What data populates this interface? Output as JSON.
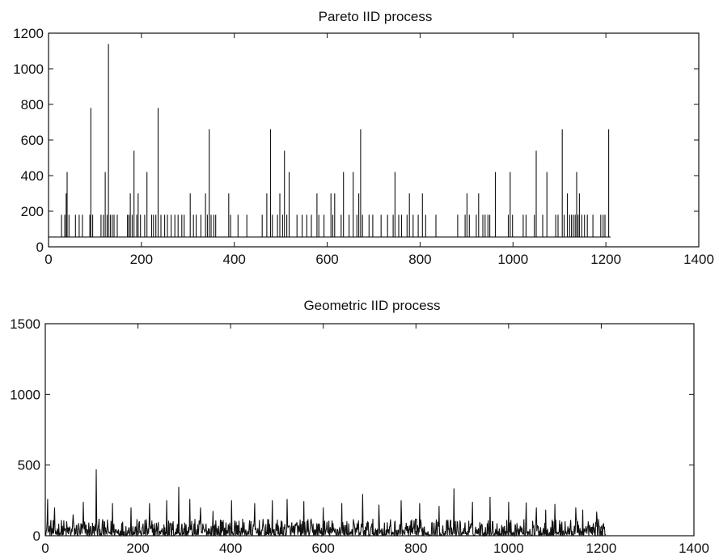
{
  "chart_data": [
    {
      "type": "line",
      "title": "Pareto IID process",
      "xlim": [
        0,
        1400
      ],
      "ylim": [
        0,
        1200
      ],
      "xticks": [
        0,
        200,
        400,
        600,
        800,
        1000,
        1200,
        1400
      ],
      "yticks": [
        0,
        200,
        400,
        600,
        800,
        1000,
        1200
      ],
      "xtick_labels": [
        "0",
        "200",
        "400",
        "600",
        "800",
        "1000",
        "1200",
        "1400"
      ],
      "ytick_labels": [
        "0",
        "200",
        "400",
        "600",
        "800",
        "1000",
        "1200"
      ],
      "n_points": 1210,
      "baseline": 55,
      "spikes": [
        [
          28,
          180
        ],
        [
          35,
          180
        ],
        [
          38,
          300
        ],
        [
          40,
          420
        ],
        [
          44,
          180
        ],
        [
          58,
          180
        ],
        [
          66,
          180
        ],
        [
          73,
          180
        ],
        [
          89,
          180
        ],
        [
          91,
          780
        ],
        [
          95,
          180
        ],
        [
          113,
          180
        ],
        [
          118,
          180
        ],
        [
          122,
          420
        ],
        [
          126,
          180
        ],
        [
          129,
          1140
        ],
        [
          133,
          180
        ],
        [
          137,
          180
        ],
        [
          141,
          180
        ],
        [
          148,
          180
        ],
        [
          170,
          180
        ],
        [
          173,
          180
        ],
        [
          176,
          300
        ],
        [
          180,
          180
        ],
        [
          184,
          540
        ],
        [
          190,
          180
        ],
        [
          193,
          300
        ],
        [
          198,
          180
        ],
        [
          207,
          180
        ],
        [
          212,
          420
        ],
        [
          222,
          180
        ],
        [
          226,
          180
        ],
        [
          231,
          180
        ],
        [
          236,
          780
        ],
        [
          242,
          180
        ],
        [
          250,
          180
        ],
        [
          256,
          180
        ],
        [
          264,
          180
        ],
        [
          272,
          180
        ],
        [
          279,
          180
        ],
        [
          287,
          180
        ],
        [
          292,
          180
        ],
        [
          305,
          300
        ],
        [
          312,
          180
        ],
        [
          318,
          180
        ],
        [
          328,
          180
        ],
        [
          338,
          300
        ],
        [
          342,
          180
        ],
        [
          346,
          660
        ],
        [
          350,
          180
        ],
        [
          356,
          180
        ],
        [
          360,
          180
        ],
        [
          388,
          300
        ],
        [
          392,
          180
        ],
        [
          408,
          180
        ],
        [
          427,
          180
        ],
        [
          460,
          180
        ],
        [
          470,
          300
        ],
        [
          478,
          660
        ],
        [
          482,
          180
        ],
        [
          493,
          180
        ],
        [
          498,
          300
        ],
        [
          504,
          180
        ],
        [
          508,
          540
        ],
        [
          513,
          180
        ],
        [
          518,
          420
        ],
        [
          535,
          180
        ],
        [
          546,
          180
        ],
        [
          556,
          180
        ],
        [
          566,
          180
        ],
        [
          578,
          300
        ],
        [
          582,
          180
        ],
        [
          593,
          180
        ],
        [
          608,
          300
        ],
        [
          612,
          180
        ],
        [
          616,
          300
        ],
        [
          630,
          180
        ],
        [
          635,
          420
        ],
        [
          647,
          180
        ],
        [
          656,
          420
        ],
        [
          664,
          180
        ],
        [
          668,
          300
        ],
        [
          672,
          660
        ],
        [
          676,
          180
        ],
        [
          690,
          180
        ],
        [
          698,
          180
        ],
        [
          716,
          180
        ],
        [
          730,
          180
        ],
        [
          742,
          180
        ],
        [
          746,
          420
        ],
        [
          754,
          180
        ],
        [
          760,
          180
        ],
        [
          772,
          180
        ],
        [
          777,
          300
        ],
        [
          785,
          180
        ],
        [
          796,
          180
        ],
        [
          805,
          300
        ],
        [
          812,
          180
        ],
        [
          834,
          180
        ],
        [
          881,
          180
        ],
        [
          897,
          180
        ],
        [
          901,
          300
        ],
        [
          906,
          180
        ],
        [
          921,
          180
        ],
        [
          926,
          300
        ],
        [
          935,
          180
        ],
        [
          940,
          180
        ],
        [
          946,
          180
        ],
        [
          950,
          180
        ],
        [
          962,
          420
        ],
        [
          990,
          180
        ],
        [
          994,
          420
        ],
        [
          999,
          180
        ],
        [
          1022,
          180
        ],
        [
          1028,
          180
        ],
        [
          1046,
          180
        ],
        [
          1050,
          540
        ],
        [
          1064,
          180
        ],
        [
          1073,
          420
        ],
        [
          1092,
          180
        ],
        [
          1097,
          180
        ],
        [
          1106,
          660
        ],
        [
          1110,
          180
        ],
        [
          1117,
          300
        ],
        [
          1122,
          180
        ],
        [
          1126,
          180
        ],
        [
          1130,
          180
        ],
        [
          1134,
          180
        ],
        [
          1137,
          420
        ],
        [
          1140,
          180
        ],
        [
          1143,
          300
        ],
        [
          1148,
          180
        ],
        [
          1154,
          180
        ],
        [
          1160,
          180
        ],
        [
          1172,
          180
        ],
        [
          1189,
          180
        ],
        [
          1194,
          180
        ],
        [
          1198,
          180
        ],
        [
          1206,
          660
        ]
      ]
    },
    {
      "type": "line",
      "title": "Geometric IID process",
      "xlim": [
        0,
        1400
      ],
      "ylim": [
        0,
        1500
      ],
      "xticks": [
        0,
        200,
        400,
        600,
        800,
        1000,
        1200,
        1400
      ],
      "yticks": [
        0,
        500,
        1000,
        1500
      ],
      "xtick_labels": [
        "0",
        "200",
        "400",
        "600",
        "800",
        "1000",
        "1200",
        "1400"
      ],
      "ytick_labels": [
        "0",
        "500",
        "1000",
        "1500"
      ],
      "n_points": 1210,
      "noise_max": 80,
      "spikes": [
        [
          5,
          260
        ],
        [
          20,
          200
        ],
        [
          60,
          150
        ],
        [
          82,
          240
        ],
        [
          110,
          470
        ],
        [
          145,
          230
        ],
        [
          185,
          200
        ],
        [
          225,
          230
        ],
        [
          262,
          250
        ],
        [
          288,
          345
        ],
        [
          312,
          260
        ],
        [
          335,
          200
        ],
        [
          362,
          175
        ],
        [
          402,
          250
        ],
        [
          452,
          230
        ],
        [
          490,
          250
        ],
        [
          522,
          260
        ],
        [
          558,
          245
        ],
        [
          600,
          200
        ],
        [
          640,
          230
        ],
        [
          685,
          295
        ],
        [
          720,
          220
        ],
        [
          768,
          250
        ],
        [
          808,
          230
        ],
        [
          850,
          210
        ],
        [
          882,
          335
        ],
        [
          922,
          240
        ],
        [
          960,
          275
        ],
        [
          1000,
          240
        ],
        [
          1038,
          235
        ],
        [
          1060,
          200
        ],
        [
          1080,
          185
        ],
        [
          1100,
          225
        ],
        [
          1145,
          200
        ],
        [
          1160,
          185
        ],
        [
          1190,
          170
        ]
      ]
    }
  ]
}
